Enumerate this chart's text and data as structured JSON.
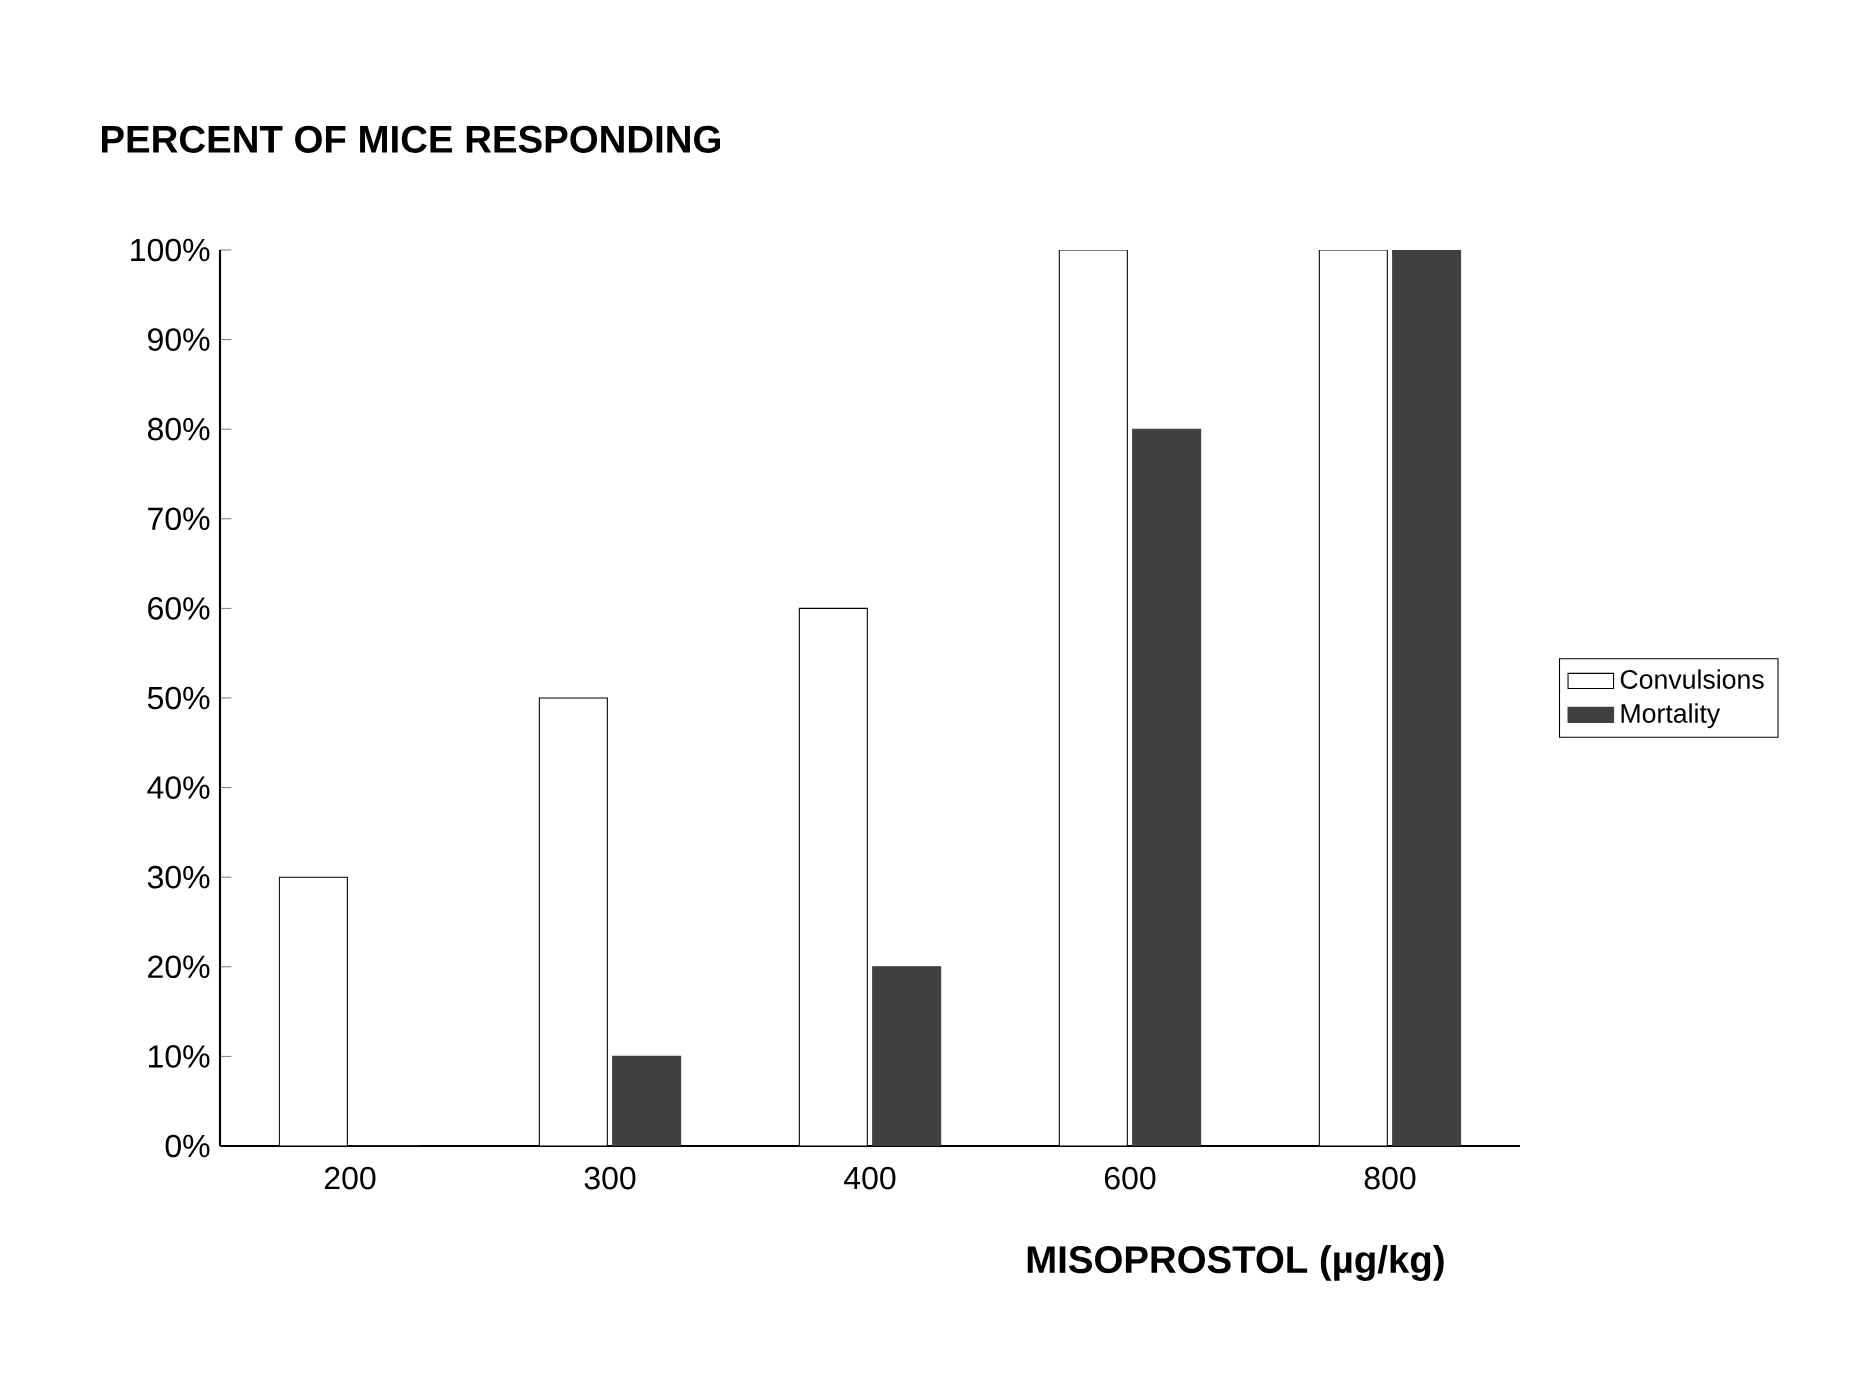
{
  "chart_data": {
    "type": "bar",
    "title": "PERCENT OF MICE RESPONDING",
    "xlabel": "MISOPROSTOL (µg/kg)",
    "categories": [
      "200",
      "300",
      "400",
      "600",
      "800"
    ],
    "series": [
      {
        "name": "Convulsions",
        "color": "#ffffff",
        "values": [
          30,
          50,
          60,
          100,
          100
        ]
      },
      {
        "name": "Mortality",
        "color": "#404040",
        "values": [
          0,
          10,
          20,
          80,
          100
        ]
      }
    ],
    "ylim": [
      0,
      100
    ],
    "yticks": [
      {
        "value": 0,
        "label": "0%"
      },
      {
        "value": 10,
        "label": "10%"
      },
      {
        "value": 20,
        "label": "20%"
      },
      {
        "value": 30,
        "label": "30%"
      },
      {
        "value": 40,
        "label": "40%"
      },
      {
        "value": 50,
        "label": "50%"
      },
      {
        "value": 60,
        "label": "60%"
      },
      {
        "value": 70,
        "label": "70%"
      },
      {
        "value": 80,
        "label": "80%"
      },
      {
        "value": 90,
        "label": "90%"
      },
      {
        "value": 100,
        "label": "100%"
      }
    ],
    "legend": "right"
  }
}
